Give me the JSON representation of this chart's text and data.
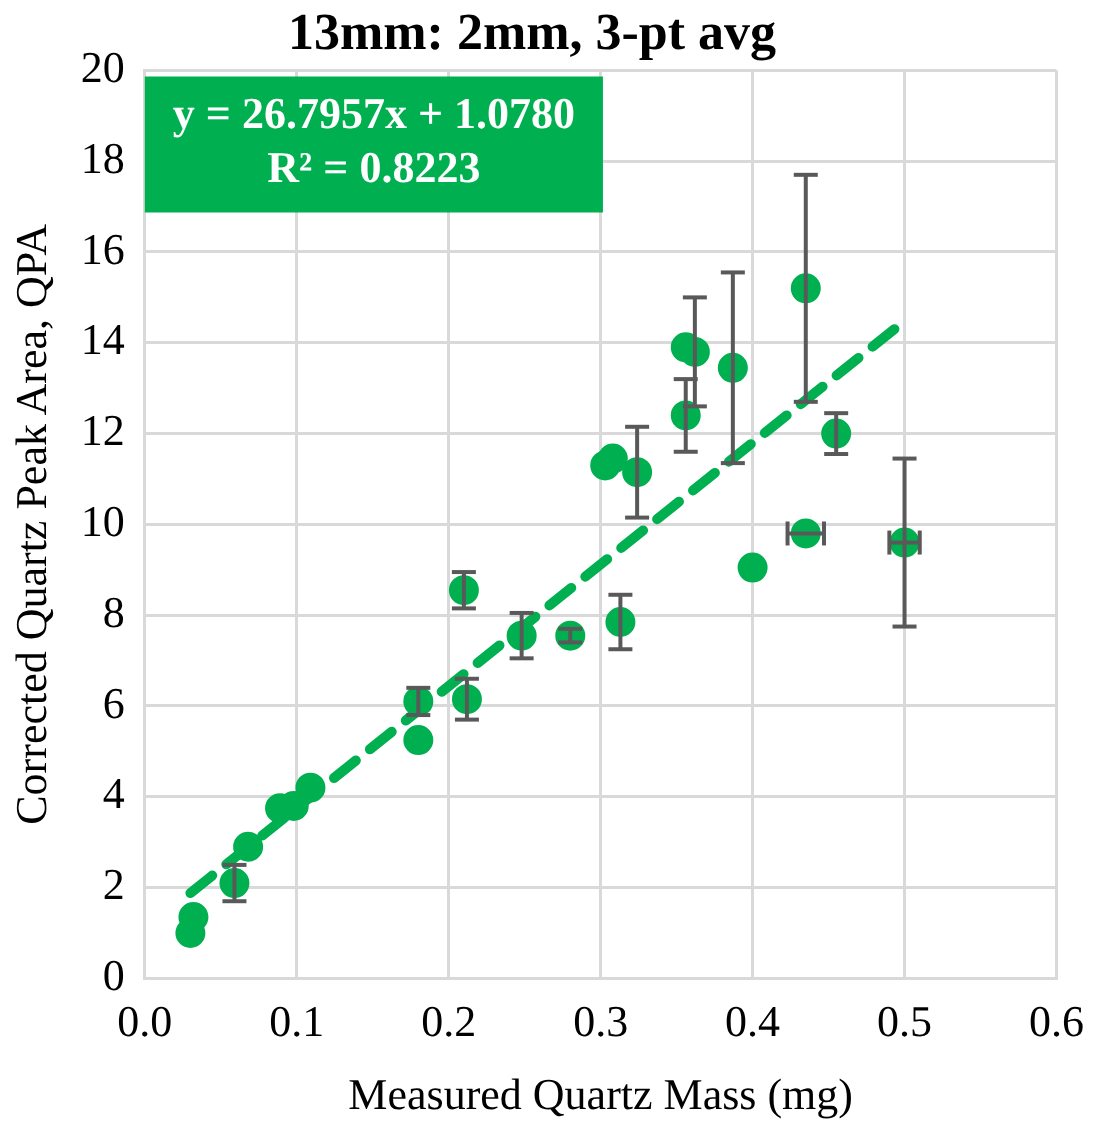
{
  "chart_data": {
    "type": "scatter",
    "title": "13mm: 2mm, 3-pt avg",
    "xlabel": "Measured Quartz Mass (mg)",
    "ylabel": "Corrected Quartz Peak Area, QPA",
    "annotations": [
      "y = 26.7957x + 1.0780",
      "R² = 0.8223"
    ],
    "xlim": [
      0,
      0.6
    ],
    "xticks": [
      {
        "value": 0,
        "label": "0.0"
      },
      0.1,
      0.2,
      0.3,
      0.4,
      0.5,
      0.6
    ],
    "ylim": [
      0,
      20
    ],
    "yticks": [
      0,
      2,
      4,
      6,
      8,
      10,
      12,
      14,
      16,
      18,
      20
    ],
    "grid": true,
    "legend": false,
    "marker": "circle",
    "series": [
      {
        "type": "scatter",
        "color": "#00b050",
        "x": [
          0.03,
          0.032,
          0.059,
          0.068,
          0.089,
          0.098,
          0.109,
          0.18,
          0.18,
          0.212,
          0.21,
          0.248,
          0.28,
          0.313,
          0.303,
          0.308,
          0.324,
          0.356,
          0.362,
          0.356,
          0.387,
          0.435,
          0.4,
          0.435,
          0.455,
          0.5
        ],
        "values": [
          1.0,
          1.35,
          2.1,
          2.9,
          3.75,
          3.8,
          4.2,
          5.25,
          6.1,
          6.15,
          8.55,
          7.55,
          7.55,
          7.85,
          11.3,
          11.45,
          11.15,
          13.9,
          13.8,
          12.4,
          13.45,
          15.2,
          9.05,
          9.8,
          12.0,
          9.6
        ],
        "errors": [
          null,
          null,
          0.4,
          null,
          null,
          null,
          null,
          null,
          0.3,
          0.45,
          0.4,
          0.5,
          0.15,
          0.6,
          null,
          null,
          1.0,
          null,
          1.2,
          0.8,
          2.1,
          2.5,
          null,
          null,
          0.45,
          1.85
        ],
        "xerrors": [
          null,
          null,
          null,
          null,
          null,
          null,
          null,
          null,
          null,
          null,
          null,
          null,
          null,
          null,
          null,
          null,
          null,
          null,
          null,
          null,
          null,
          null,
          null,
          0.012,
          null,
          0.01
        ]
      },
      {
        "type": "line",
        "color": "#00b050",
        "line_style": "dashed",
        "marker": "none",
        "x": [
          0.03,
          0.5
        ],
        "values": [
          1.88,
          14.48
        ]
      }
    ]
  }
}
